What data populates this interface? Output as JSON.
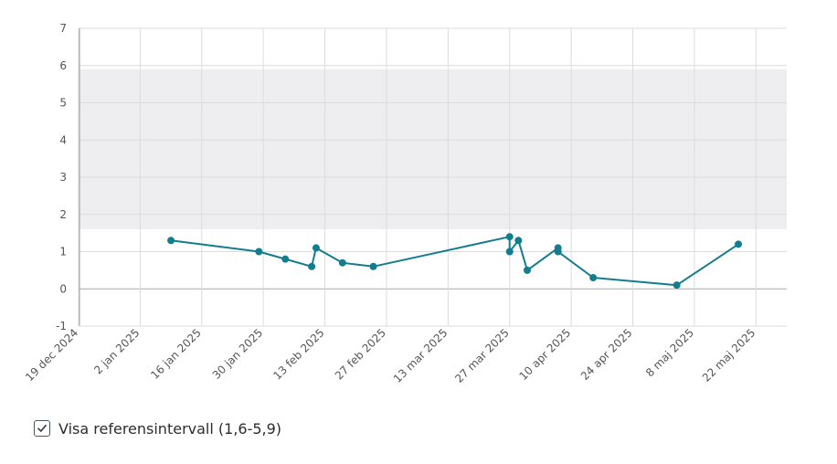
{
  "chart_data": {
    "type": "line",
    "x_axis": {
      "type": "date",
      "min": "2024-12-19",
      "max": "2025-05-29",
      "tick_labels": [
        "19 dec 2024",
        "2 jan 2025",
        "16 jan 2025",
        "30 jan 2025",
        "13 feb 2025",
        "27 feb 2025",
        "13 mar 2025",
        "27 mar 2025",
        "10 apr 2025",
        "24 apr 2025",
        "8 maj 2025",
        "22 maj 2025"
      ]
    },
    "y_axis": {
      "min": -1,
      "max": 7,
      "tick_labels": [
        "-1",
        "0",
        "1",
        "2",
        "3",
        "4",
        "5",
        "6",
        "7"
      ]
    },
    "grid": true,
    "reference_band": {
      "low": 1.6,
      "high": 5.9,
      "color": "#eeeef0"
    },
    "series": [
      {
        "color": "#147d8d",
        "points": [
          {
            "x": "2025-01-09",
            "y": 1.3
          },
          {
            "x": "2025-01-29",
            "y": 1.0
          },
          {
            "x": "2025-02-04",
            "y": 0.8
          },
          {
            "x": "2025-02-10",
            "y": 0.6
          },
          {
            "x": "2025-02-11",
            "y": 1.1
          },
          {
            "x": "2025-02-17",
            "y": 0.7
          },
          {
            "x": "2025-02-24",
            "y": 0.6
          },
          {
            "x": "2025-03-27",
            "y": 1.4
          },
          {
            "x": "2025-03-27",
            "y": 1.0
          },
          {
            "x": "2025-03-29",
            "y": 1.3
          },
          {
            "x": "2025-03-31",
            "y": 0.5
          },
          {
            "x": "2025-04-07",
            "y": 1.1
          },
          {
            "x": "2025-04-07",
            "y": 1.0
          },
          {
            "x": "2025-04-15",
            "y": 0.3
          },
          {
            "x": "2025-05-04",
            "y": 0.1
          },
          {
            "x": "2025-05-18",
            "y": 1.2
          }
        ]
      }
    ]
  },
  "reference_toggle": {
    "checked": true,
    "label": "Visa referensintervall (1,6-5,9)"
  },
  "colors": {
    "grid": "#dcdcdc",
    "zero_line": "#aaaaaa",
    "axis": "#999999"
  }
}
